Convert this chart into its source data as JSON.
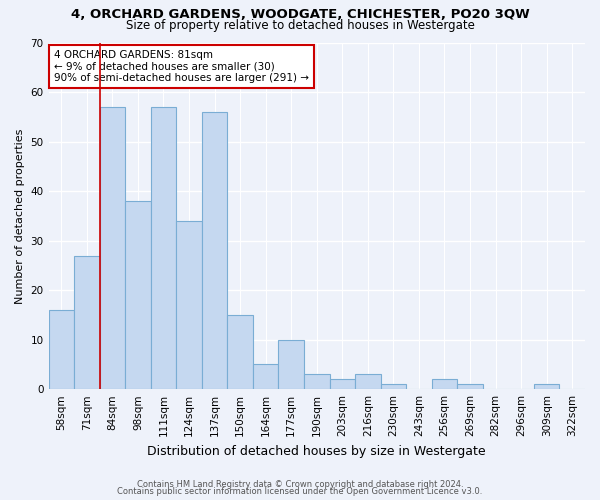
{
  "title": "4, ORCHARD GARDENS, WOODGATE, CHICHESTER, PO20 3QW",
  "subtitle": "Size of property relative to detached houses in Westergate",
  "xlabel": "Distribution of detached houses by size in Westergate",
  "ylabel": "Number of detached properties",
  "categories": [
    "58sqm",
    "71sqm",
    "84sqm",
    "98sqm",
    "111sqm",
    "124sqm",
    "137sqm",
    "150sqm",
    "164sqm",
    "177sqm",
    "190sqm",
    "203sqm",
    "216sqm",
    "230sqm",
    "243sqm",
    "256sqm",
    "269sqm",
    "282sqm",
    "296sqm",
    "309sqm",
    "322sqm"
  ],
  "values": [
    16,
    27,
    57,
    38,
    57,
    34,
    56,
    15,
    5,
    10,
    3,
    2,
    3,
    1,
    0,
    2,
    1,
    0,
    0,
    1,
    0
  ],
  "bar_color": "#c5d8f0",
  "bar_edge_color": "#7aadd4",
  "redline_x": 2.0,
  "annotation_text": "4 ORCHARD GARDENS: 81sqm\n← 9% of detached houses are smaller (30)\n90% of semi-detached houses are larger (291) →",
  "annotation_box_color": "#ffffff",
  "annotation_box_edge": "#cc0000",
  "ylim": [
    0,
    70
  ],
  "yticks": [
    0,
    10,
    20,
    30,
    40,
    50,
    60,
    70
  ],
  "footer1": "Contains HM Land Registry data © Crown copyright and database right 2024.",
  "footer2": "Contains public sector information licensed under the Open Government Licence v3.0.",
  "background_color": "#eef2fa",
  "grid_color": "#ffffff",
  "title_fontsize": 9.5,
  "subtitle_fontsize": 8.5,
  "xlabel_fontsize": 9,
  "ylabel_fontsize": 8,
  "tick_fontsize": 7.5,
  "footer_fontsize": 6
}
